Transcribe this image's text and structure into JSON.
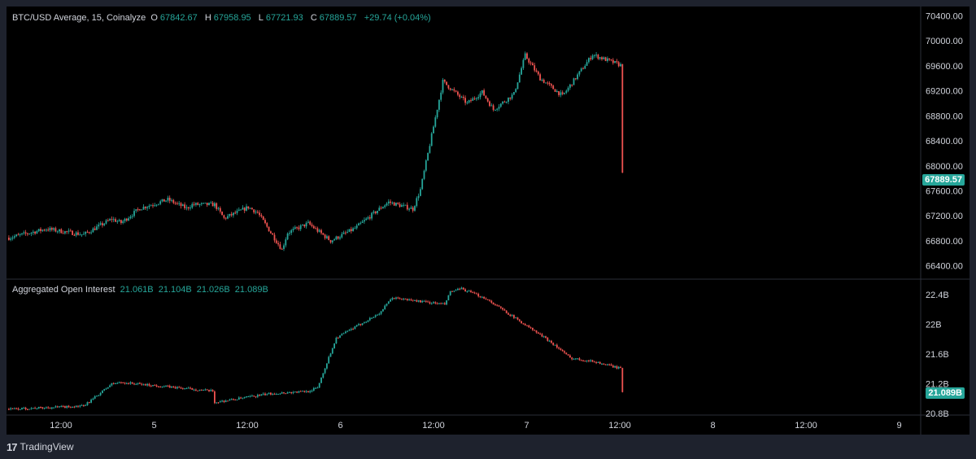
{
  "price_legend": {
    "title": "BTC/USD Average, 15, Coinalyze",
    "o_label": "O",
    "o": "67842.67",
    "h_label": "H",
    "h": "67958.95",
    "l_label": "L",
    "l": "67721.93",
    "c_label": "C",
    "c": "67889.57",
    "change": "+29.74 (+0.04%)"
  },
  "oi_legend": {
    "title": "Aggregated Open Interest",
    "v1": "21.061B",
    "v2": "21.104B",
    "v3": "21.026B",
    "v4": "21.089B"
  },
  "price_last": "67889.57",
  "oi_last": "21.089B",
  "footer": {
    "brand": "TradingView",
    "logo_icon": "tradingview-logo-icon"
  },
  "colors": {
    "up": "#26a69a",
    "down": "#ef5350",
    "background": "#000000",
    "frame": "#1e222d",
    "text": "#d1d4dc"
  },
  "chart_data": [
    {
      "type": "candlestick",
      "title": "BTC/USD Average, 15, Coinalyze",
      "interval": "15",
      "x_ticks": [
        "12:00",
        "5",
        "12:00",
        "6",
        "12:00",
        "7",
        "12:00",
        "8",
        "12:00",
        "9"
      ],
      "y_ticks": [
        "66400.00",
        "66800.00",
        "67200.00",
        "67600.00",
        "68000.00",
        "68400.00",
        "68800.00",
        "69200.00",
        "69600.00",
        "70000.00",
        "70400.00"
      ],
      "ylim": [
        66200,
        70550
      ],
      "grid": false,
      "series": [
        {
          "name": "BTC/USD Average",
          "keypoints_x": [
            0,
            20,
            40,
            55,
            60,
            70,
            85,
            95,
            98,
            110,
            115,
            128,
            133,
            146,
            149,
            160,
            172,
            185,
            198,
            203,
            216,
            220,
            232,
            245,
            253,
            259,
            270,
            276,
            284,
            296,
            312,
            328
          ],
          "keypoints_y": [
            66850,
            66990,
            66900,
            67150,
            67090,
            67320,
            67460,
            67320,
            67380,
            67380,
            67160,
            67340,
            67250,
            66660,
            66930,
            67080,
            66800,
            67000,
            67310,
            67420,
            67310,
            67620,
            69350,
            69000,
            69180,
            68900,
            69150,
            69770,
            69400,
            69120,
            69780,
            69600
          ]
        }
      ],
      "last_value": 67889.57
    },
    {
      "type": "candlestick",
      "title": "Aggregated Open Interest",
      "x_ticks": [
        "12:00",
        "5",
        "12:00",
        "6",
        "12:00",
        "7",
        "12:00",
        "8",
        "12:00",
        "9"
      ],
      "y_ticks": [
        "20.8B",
        "21.2B",
        "21.6B",
        "22B",
        "22.4B"
      ],
      "ylim": [
        20.78,
        22.6
      ],
      "series": [
        {
          "name": "Aggregated Open Interest",
          "keypoints_x": [
            0,
            40,
            55,
            60,
            98,
            109,
            110,
            140,
            160,
            165,
            175,
            198,
            205,
            233,
            236,
            242,
            255,
            290,
            300,
            313,
            328
          ],
          "keypoints_y": [
            20.86,
            20.9,
            21.2,
            21.22,
            21.13,
            21.1,
            20.95,
            21.07,
            21.1,
            21.15,
            21.82,
            22.15,
            22.36,
            22.27,
            22.44,
            22.48,
            22.35,
            21.76,
            21.55,
            21.5,
            21.4
          ]
        }
      ],
      "last_value": 21.089
    }
  ]
}
